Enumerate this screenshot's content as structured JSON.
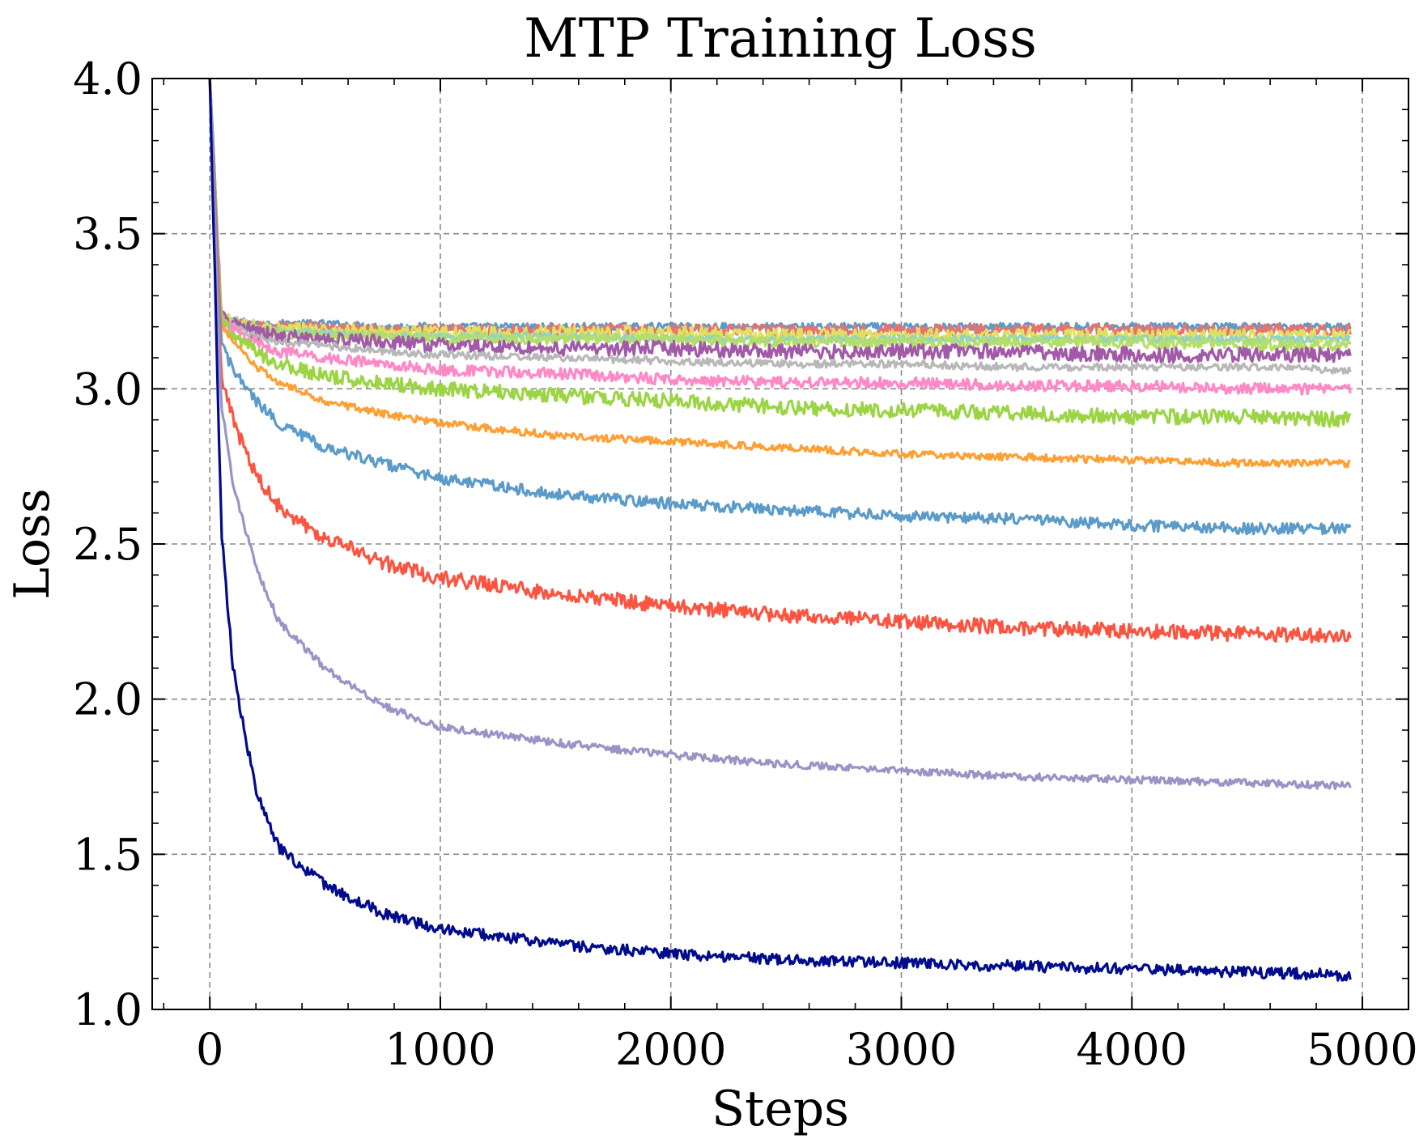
{
  "chart_data": {
    "type": "line",
    "title": "MTP Training Loss",
    "xlabel": "Steps",
    "ylabel": "Loss",
    "xlim": [
      -250,
      5200
    ],
    "ylim": [
      1.0,
      4.0
    ],
    "xticks": [
      0,
      1000,
      2000,
      3000,
      4000,
      5000
    ],
    "xtick_labels": [
      "0",
      "1000",
      "2000",
      "3000",
      "4000",
      "5000"
    ],
    "yticks": [
      1.0,
      1.5,
      2.0,
      2.5,
      3.0,
      3.5,
      4.0
    ],
    "ytick_labels": [
      "1.0",
      "1.5",
      "2.0",
      "2.5",
      "3.0",
      "3.5",
      "4.0"
    ],
    "grid": true,
    "legend": false,
    "x": [
      0,
      50,
      100,
      200,
      300,
      500,
      750,
      1000,
      1500,
      2000,
      2500,
      3000,
      3500,
      4000,
      4500,
      4950
    ],
    "series": [
      {
        "color": "#5b9bc9",
        "values": [
          4.0,
          3.23,
          3.22,
          3.21,
          3.21,
          3.21,
          3.2,
          3.2,
          3.2,
          3.2,
          3.2,
          3.2,
          3.2,
          3.2,
          3.2,
          3.2
        ]
      },
      {
        "color": "#e8736c",
        "values": [
          4.0,
          3.23,
          3.21,
          3.2,
          3.2,
          3.2,
          3.19,
          3.19,
          3.19,
          3.19,
          3.19,
          3.19,
          3.19,
          3.19,
          3.19,
          3.19
        ]
      },
      {
        "color": "#e0e060",
        "values": [
          4.0,
          3.23,
          3.21,
          3.2,
          3.19,
          3.19,
          3.18,
          3.18,
          3.18,
          3.18,
          3.17,
          3.17,
          3.17,
          3.17,
          3.17,
          3.17
        ]
      },
      {
        "color": "#8fd3c7",
        "values": [
          4.0,
          3.23,
          3.21,
          3.19,
          3.19,
          3.18,
          3.17,
          3.17,
          3.17,
          3.16,
          3.16,
          3.16,
          3.16,
          3.16,
          3.16,
          3.16
        ]
      },
      {
        "color": "#b3de69",
        "values": [
          4.0,
          3.23,
          3.21,
          3.19,
          3.18,
          3.17,
          3.17,
          3.16,
          3.16,
          3.16,
          3.15,
          3.15,
          3.15,
          3.15,
          3.14,
          3.14
        ]
      },
      {
        "color": "#a25aa8",
        "values": [
          4.0,
          3.23,
          3.21,
          3.18,
          3.17,
          3.16,
          3.15,
          3.14,
          3.13,
          3.13,
          3.12,
          3.12,
          3.12,
          3.11,
          3.11,
          3.11
        ]
      },
      {
        "color": "#b8b8b8",
        "values": [
          4.0,
          3.23,
          3.2,
          3.17,
          3.15,
          3.14,
          3.12,
          3.11,
          3.1,
          3.09,
          3.08,
          3.08,
          3.07,
          3.07,
          3.07,
          3.06
        ]
      },
      {
        "color": "#ff88c6",
        "values": [
          4.0,
          3.22,
          3.19,
          3.15,
          3.12,
          3.1,
          3.08,
          3.06,
          3.05,
          3.03,
          3.02,
          3.02,
          3.01,
          3.01,
          3.0,
          3.0
        ]
      },
      {
        "color": "#9bd444",
        "values": [
          4.0,
          3.22,
          3.17,
          3.12,
          3.08,
          3.04,
          3.02,
          3.0,
          2.98,
          2.96,
          2.94,
          2.93,
          2.92,
          2.91,
          2.91,
          2.9
        ]
      },
      {
        "color": "#ff9f33",
        "values": [
          4.0,
          3.21,
          3.15,
          3.07,
          3.02,
          2.96,
          2.92,
          2.89,
          2.85,
          2.83,
          2.81,
          2.79,
          2.78,
          2.77,
          2.76,
          2.76
        ]
      },
      {
        "color": "#5b9bc9",
        "values": [
          4.0,
          3.15,
          3.06,
          2.96,
          2.89,
          2.81,
          2.76,
          2.71,
          2.66,
          2.63,
          2.61,
          2.59,
          2.58,
          2.56,
          2.55,
          2.55
        ]
      },
      {
        "color": "#fb5542",
        "values": [
          4.0,
          3.05,
          2.9,
          2.72,
          2.62,
          2.52,
          2.44,
          2.39,
          2.34,
          2.3,
          2.27,
          2.25,
          2.23,
          2.22,
          2.21,
          2.2
        ]
      },
      {
        "color": "#9a94c6",
        "values": [
          4.0,
          2.95,
          2.7,
          2.42,
          2.25,
          2.1,
          1.98,
          1.91,
          1.86,
          1.82,
          1.79,
          1.77,
          1.75,
          1.74,
          1.73,
          1.72
        ]
      },
      {
        "color": "#000c8c",
        "values": [
          4.0,
          2.55,
          2.1,
          1.7,
          1.52,
          1.4,
          1.31,
          1.26,
          1.21,
          1.18,
          1.16,
          1.15,
          1.14,
          1.13,
          1.12,
          1.11
        ]
      }
    ]
  }
}
